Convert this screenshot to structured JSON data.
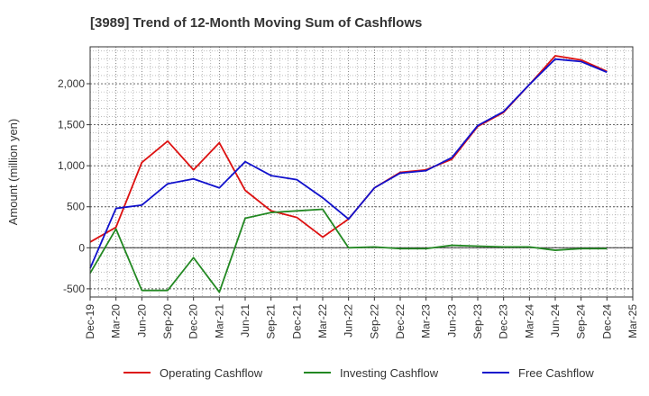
{
  "chart_data": {
    "type": "line",
    "title": "[3989]  Trend of 12-Month Moving Sum of Cashflows",
    "ylabel": "Amount (million yen)",
    "xlabel": "",
    "ylim": [
      -600,
      2450
    ],
    "yticks": [
      -500,
      0,
      500,
      1000,
      1500,
      2000
    ],
    "ytick_labels": [
      "-500",
      "0",
      "500",
      "1,000",
      "1,500",
      "2,000"
    ],
    "x_labels": [
      "Dec-19",
      "Mar-20",
      "Jun-20",
      "Sep-20",
      "Dec-20",
      "Mar-21",
      "Jun-21",
      "Sep-21",
      "Dec-21",
      "Mar-22",
      "Jun-22",
      "Sep-22",
      "Dec-22",
      "Mar-23",
      "Jun-23",
      "Sep-23",
      "Dec-23",
      "Mar-24",
      "Jun-24",
      "Sep-24",
      "Dec-24",
      "Mar-25"
    ],
    "grid": true,
    "legend_position": "bottom",
    "series": [
      {
        "name": "Operating Cashflow",
        "color": "#dd1111",
        "values": [
          70,
          250,
          1040,
          1300,
          950,
          1280,
          700,
          450,
          370,
          130,
          350,
          730,
          920,
          950,
          1080,
          1480,
          1650,
          1990,
          2340,
          2290,
          2150,
          null
        ]
      },
      {
        "name": "Investing Cashflow",
        "color": "#228822",
        "values": [
          -310,
          230,
          -520,
          -520,
          -120,
          -540,
          360,
          430,
          450,
          470,
          0,
          10,
          -10,
          -10,
          30,
          20,
          10,
          10,
          -30,
          -10,
          -10,
          null
        ]
      },
      {
        "name": "Free Cashflow",
        "color": "#1111cc",
        "values": [
          -250,
          480,
          520,
          780,
          840,
          730,
          1050,
          880,
          830,
          610,
          350,
          730,
          910,
          940,
          1100,
          1490,
          1660,
          1990,
          2300,
          2270,
          2140,
          null
        ]
      }
    ]
  }
}
